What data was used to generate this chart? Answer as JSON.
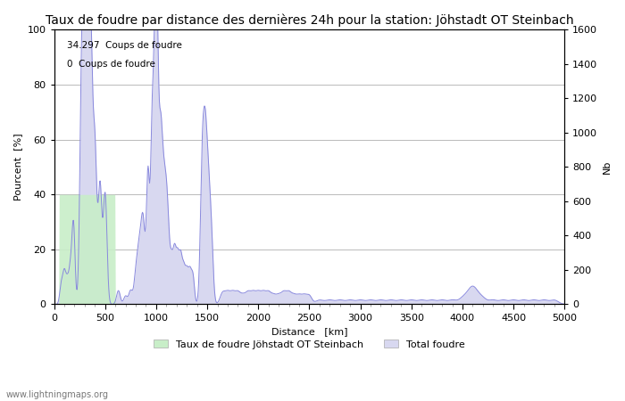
{
  "title": "Taux de foudre par distance des dernières 24h pour la station: Jöhstadt OT Steinbach",
  "xlabel": "Distance   [km]",
  "ylabel_left": "Pourcent  [%]",
  "ylabel_right": "Nb",
  "annotation_line1": "34.297  Coups de foudre",
  "annotation_line2": "0  Coups de foudre",
  "legend_label1": "Taux de foudre Jöhstadt OT Steinbach",
  "legend_label2": "Total foudre",
  "footer": "www.lightningmaps.org",
  "xlim": [
    0,
    5000
  ],
  "ylim_left": [
    0,
    100
  ],
  "ylim_right": [
    0,
    1600
  ],
  "yticks_left": [
    0,
    20,
    40,
    60,
    80,
    100
  ],
  "yticks_right": [
    0,
    200,
    400,
    600,
    800,
    1000,
    1200,
    1400,
    1600
  ],
  "xticks": [
    0,
    500,
    1000,
    1500,
    2000,
    2500,
    3000,
    3500,
    4000,
    4500,
    5000
  ],
  "bg_color": "#ffffff",
  "grid_color": "#b0b0b0",
  "line_color": "#8888dd",
  "fill_color_green": "#c8eec8",
  "fill_color_blue": "#d8d8f0",
  "title_fontsize": 10,
  "axis_fontsize": 8,
  "tick_fontsize": 8,
  "green_fill_x_max": 600
}
